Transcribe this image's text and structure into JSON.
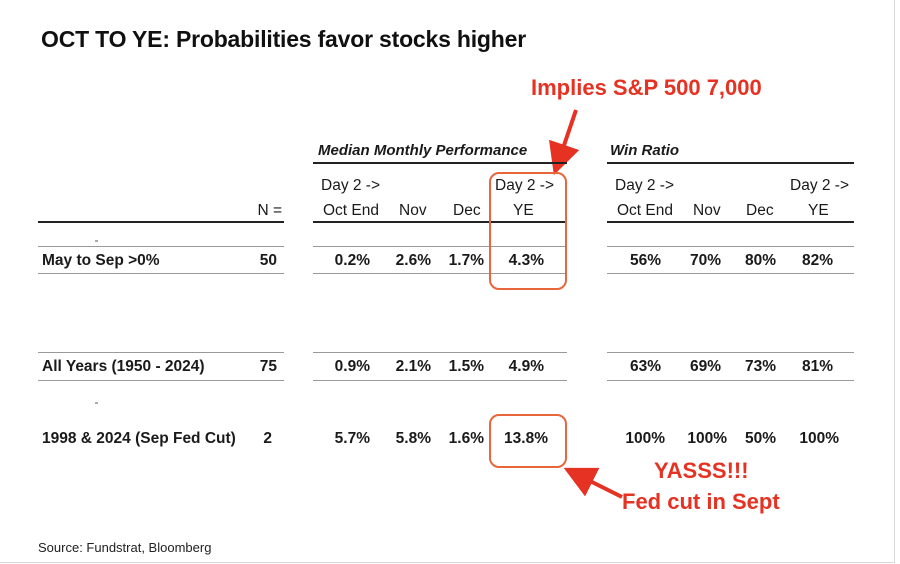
{
  "title": "OCT TO YE: Probabilities favor stocks higher",
  "annotations": {
    "top": "Implies S&P 500 7,000",
    "bottom_line1": "YASSS!!!",
    "bottom_line2": "Fed cut in Sept"
  },
  "groups": {
    "median": "Median Monthly Performance",
    "win": "Win Ratio"
  },
  "columns": {
    "n": "N =",
    "day2": "Day 2 ->",
    "oct_end": "Oct End",
    "nov": "Nov",
    "dec": "Dec",
    "ye": "YE"
  },
  "rows": [
    {
      "label": "May to Sep >0%",
      "n": "50",
      "perf": [
        "0.2%",
        "2.6%",
        "1.7%",
        "4.3%"
      ],
      "win": [
        "56%",
        "70%",
        "80%",
        "82%"
      ]
    },
    {
      "label": "All Years (1950 - 2024)",
      "n": "75",
      "perf": [
        "0.9%",
        "2.1%",
        "1.5%",
        "4.9%"
      ],
      "win": [
        "63%",
        "69%",
        "73%",
        "81%"
      ]
    },
    {
      "label": "1998 & 2024 (Sep Fed Cut)",
      "n": "2",
      "perf": [
        "5.7%",
        "5.8%",
        "1.6%",
        "13.8%"
      ],
      "win": [
        "100%",
        "100%",
        "50%",
        "100%"
      ]
    }
  ],
  "source": "Source: Fundstrat, Bloomberg",
  "colors": {
    "accent": "#e53222",
    "box": "#e8663a"
  }
}
